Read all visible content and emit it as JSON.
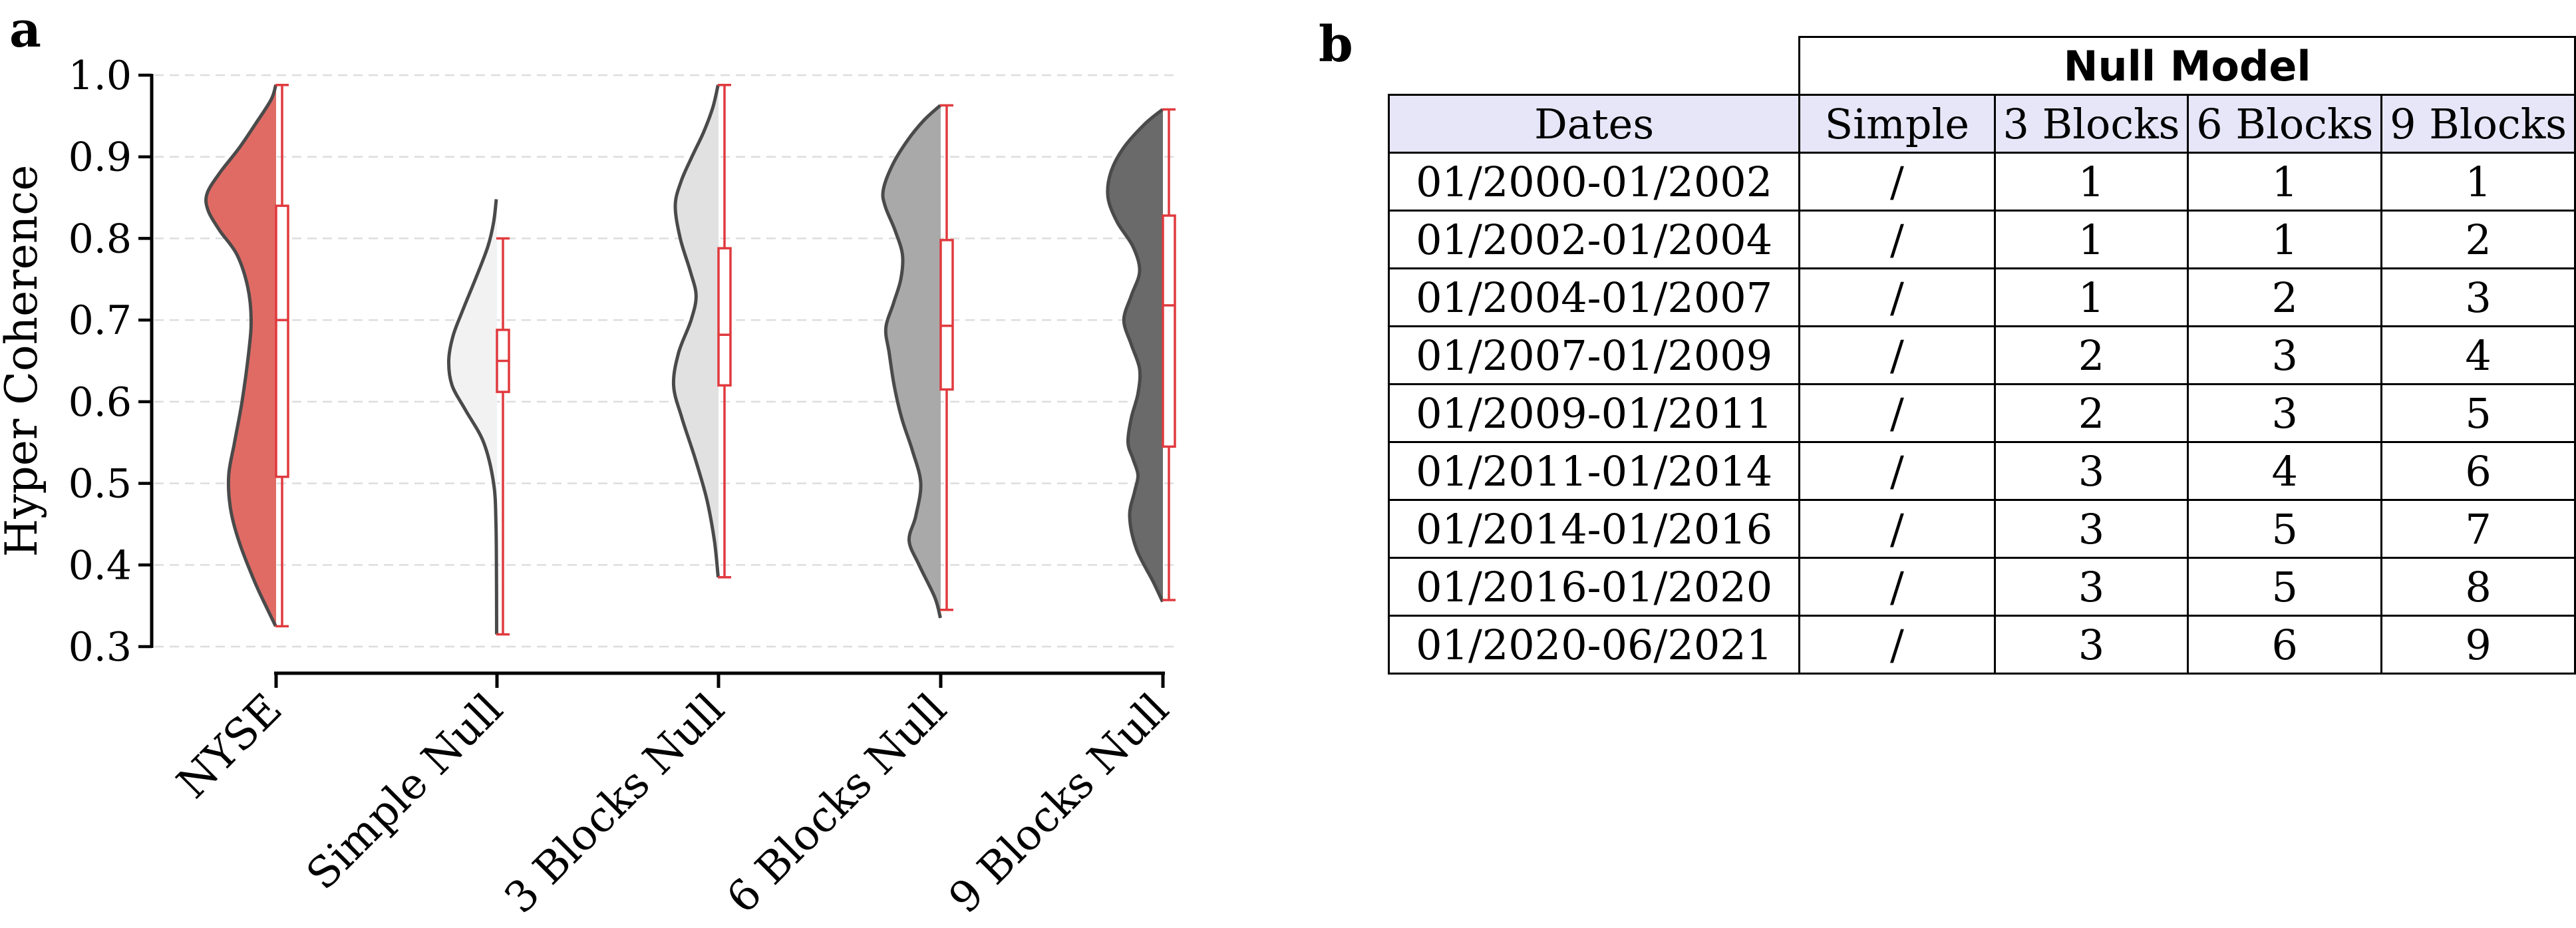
{
  "panels": {
    "left_letter": "a",
    "right_letter": "b"
  },
  "colors": {
    "NYSE": "#e06b65",
    "Simple Null": "#f2f2f2",
    "3 Blocks Null": "#e1e1e1",
    "6 Blocks Null": "#a9a9a9",
    "9 Blocks Null": "#6a6a6a",
    "outline": "#4a4a4a",
    "box": "#e03a3e",
    "header_fill": "#e6e6f8"
  },
  "chart_data": {
    "type": "violin",
    "ylabel": "Hyper Coherence",
    "ylim": [
      0.3,
      1.0
    ],
    "yticks": [
      "0.3",
      "0.4",
      "0.5",
      "0.6",
      "0.7",
      "0.8",
      "0.9",
      "1.0"
    ],
    "categories": [
      "NYSE",
      "Simple Null",
      "3 Blocks Null",
      "6 Blocks Null",
      "9 Blocks Null"
    ],
    "grid": "horizontal dashed",
    "series": [
      {
        "name": "NYSE",
        "min": 0.325,
        "q1": 0.508,
        "median": 0.7,
        "q3": 0.84,
        "max": 0.988,
        "density": [
          [
            0.325,
            0.005
          ],
          [
            0.345,
            0.1
          ],
          [
            0.38,
            0.26
          ],
          [
            0.43,
            0.45
          ],
          [
            0.47,
            0.55
          ],
          [
            0.51,
            0.57
          ],
          [
            0.55,
            0.5
          ],
          [
            0.6,
            0.41
          ],
          [
            0.66,
            0.33
          ],
          [
            0.7,
            0.3
          ],
          [
            0.74,
            0.34
          ],
          [
            0.78,
            0.47
          ],
          [
            0.81,
            0.68
          ],
          [
            0.835,
            0.82
          ],
          [
            0.855,
            0.83
          ],
          [
            0.88,
            0.68
          ],
          [
            0.91,
            0.45
          ],
          [
            0.94,
            0.25
          ],
          [
            0.97,
            0.06
          ],
          [
            0.988,
            0.003
          ]
        ]
      },
      {
        "name": "Simple Null",
        "min": 0.315,
        "q1": 0.612,
        "median": 0.65,
        "q3": 0.688,
        "max": 0.8,
        "density": [
          [
            0.315,
            0.004
          ],
          [
            0.38,
            0.006
          ],
          [
            0.45,
            0.012
          ],
          [
            0.5,
            0.04
          ],
          [
            0.55,
            0.16
          ],
          [
            0.59,
            0.38
          ],
          [
            0.62,
            0.54
          ],
          [
            0.65,
            0.58
          ],
          [
            0.68,
            0.53
          ],
          [
            0.71,
            0.42
          ],
          [
            0.75,
            0.26
          ],
          [
            0.79,
            0.11
          ],
          [
            0.82,
            0.04
          ],
          [
            0.848,
            0.008
          ]
        ]
      },
      {
        "name": "3 Blocks Null",
        "min": 0.385,
        "q1": 0.62,
        "median": 0.682,
        "q3": 0.788,
        "max": 0.988,
        "density": [
          [
            0.385,
            0.004
          ],
          [
            0.43,
            0.05
          ],
          [
            0.48,
            0.14
          ],
          [
            0.53,
            0.28
          ],
          [
            0.58,
            0.44
          ],
          [
            0.62,
            0.54
          ],
          [
            0.66,
            0.48
          ],
          [
            0.7,
            0.33
          ],
          [
            0.73,
            0.27
          ],
          [
            0.76,
            0.34
          ],
          [
            0.8,
            0.46
          ],
          [
            0.84,
            0.52
          ],
          [
            0.87,
            0.45
          ],
          [
            0.9,
            0.32
          ],
          [
            0.93,
            0.18
          ],
          [
            0.96,
            0.07
          ],
          [
            0.988,
            0.005
          ]
        ]
      },
      {
        "name": "6 Blocks Null",
        "min": 0.345,
        "q1": 0.615,
        "median": 0.693,
        "q3": 0.798,
        "max": 0.963,
        "density": [
          [
            0.335,
            0.004
          ],
          [
            0.36,
            0.07
          ],
          [
            0.4,
            0.26
          ],
          [
            0.43,
            0.38
          ],
          [
            0.46,
            0.3
          ],
          [
            0.5,
            0.24
          ],
          [
            0.54,
            0.34
          ],
          [
            0.58,
            0.47
          ],
          [
            0.62,
            0.56
          ],
          [
            0.66,
            0.62
          ],
          [
            0.69,
            0.66
          ],
          [
            0.72,
            0.57
          ],
          [
            0.75,
            0.48
          ],
          [
            0.78,
            0.46
          ],
          [
            0.81,
            0.55
          ],
          [
            0.84,
            0.67
          ],
          [
            0.86,
            0.69
          ],
          [
            0.89,
            0.58
          ],
          [
            0.92,
            0.4
          ],
          [
            0.945,
            0.2
          ],
          [
            0.963,
            0.004
          ]
        ]
      },
      {
        "name": "9 Blocks Null",
        "min": 0.357,
        "q1": 0.545,
        "median": 0.718,
        "q3": 0.828,
        "max": 0.958,
        "density": [
          [
            0.355,
            0.004
          ],
          [
            0.38,
            0.12
          ],
          [
            0.42,
            0.32
          ],
          [
            0.46,
            0.4
          ],
          [
            0.49,
            0.34
          ],
          [
            0.51,
            0.3
          ],
          [
            0.53,
            0.36
          ],
          [
            0.55,
            0.42
          ],
          [
            0.58,
            0.38
          ],
          [
            0.61,
            0.3
          ],
          [
            0.64,
            0.28
          ],
          [
            0.67,
            0.38
          ],
          [
            0.7,
            0.47
          ],
          [
            0.73,
            0.38
          ],
          [
            0.76,
            0.28
          ],
          [
            0.79,
            0.36
          ],
          [
            0.82,
            0.55
          ],
          [
            0.85,
            0.66
          ],
          [
            0.88,
            0.63
          ],
          [
            0.91,
            0.48
          ],
          [
            0.94,
            0.22
          ],
          [
            0.958,
            0.004
          ]
        ]
      }
    ]
  },
  "table": {
    "group_header": "Null Model",
    "columns": [
      "Dates",
      "Simple",
      "3 Blocks",
      "6 Blocks",
      "9 Blocks"
    ],
    "rows": [
      [
        "01/2000-01/2002",
        "/",
        "1",
        "1",
        "1"
      ],
      [
        "01/2002-01/2004",
        "/",
        "1",
        "1",
        "2"
      ],
      [
        "01/2004-01/2007",
        "/",
        "1",
        "2",
        "3"
      ],
      [
        "01/2007-01/2009",
        "/",
        "2",
        "3",
        "4"
      ],
      [
        "01/2009-01/2011",
        "/",
        "2",
        "3",
        "5"
      ],
      [
        "01/2011-01/2014",
        "/",
        "3",
        "4",
        "6"
      ],
      [
        "01/2014-01/2016",
        "/",
        "3",
        "5",
        "7"
      ],
      [
        "01/2016-01/2020",
        "/",
        "3",
        "5",
        "8"
      ],
      [
        "01/2020-06/2021",
        "/",
        "3",
        "6",
        "9"
      ]
    ]
  }
}
